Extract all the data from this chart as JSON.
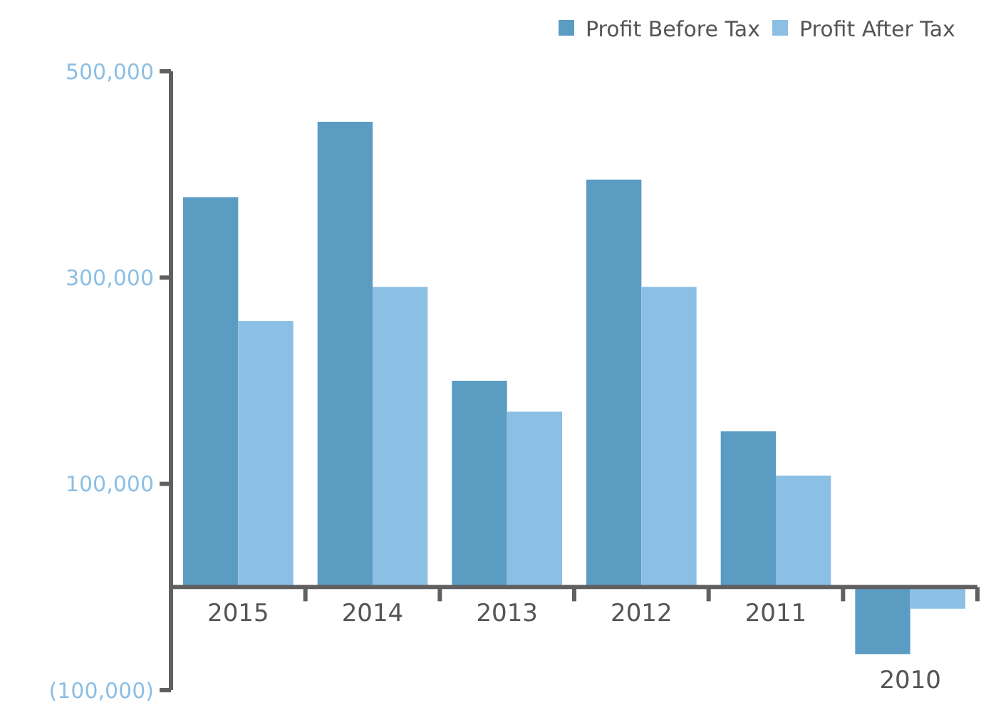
{
  "chart_data": {
    "type": "bar",
    "categories": [
      "2015",
      "2014",
      "2013",
      "2012",
      "2011",
      "2010"
    ],
    "series": [
      {
        "name": "Profit Before Tax",
        "color": "#5b9cc3",
        "values": [
          378000,
          451000,
          200000,
          395000,
          151000,
          -65000
        ]
      },
      {
        "name": "Profit After Tax",
        "color": "#8cbfe4",
        "values": [
          258000,
          291000,
          170000,
          291000,
          108000,
          -21000
        ]
      }
    ],
    "ylim": [
      -100000,
      500000
    ],
    "yticks": [
      {
        "value": 500000,
        "label": "500,000"
      },
      {
        "value": 300000,
        "label": "300,000"
      },
      {
        "value": 100000,
        "label": "100,000"
      },
      {
        "value": -100000,
        "label": "(100,000)"
      }
    ],
    "grid": false,
    "legend": "top right"
  }
}
